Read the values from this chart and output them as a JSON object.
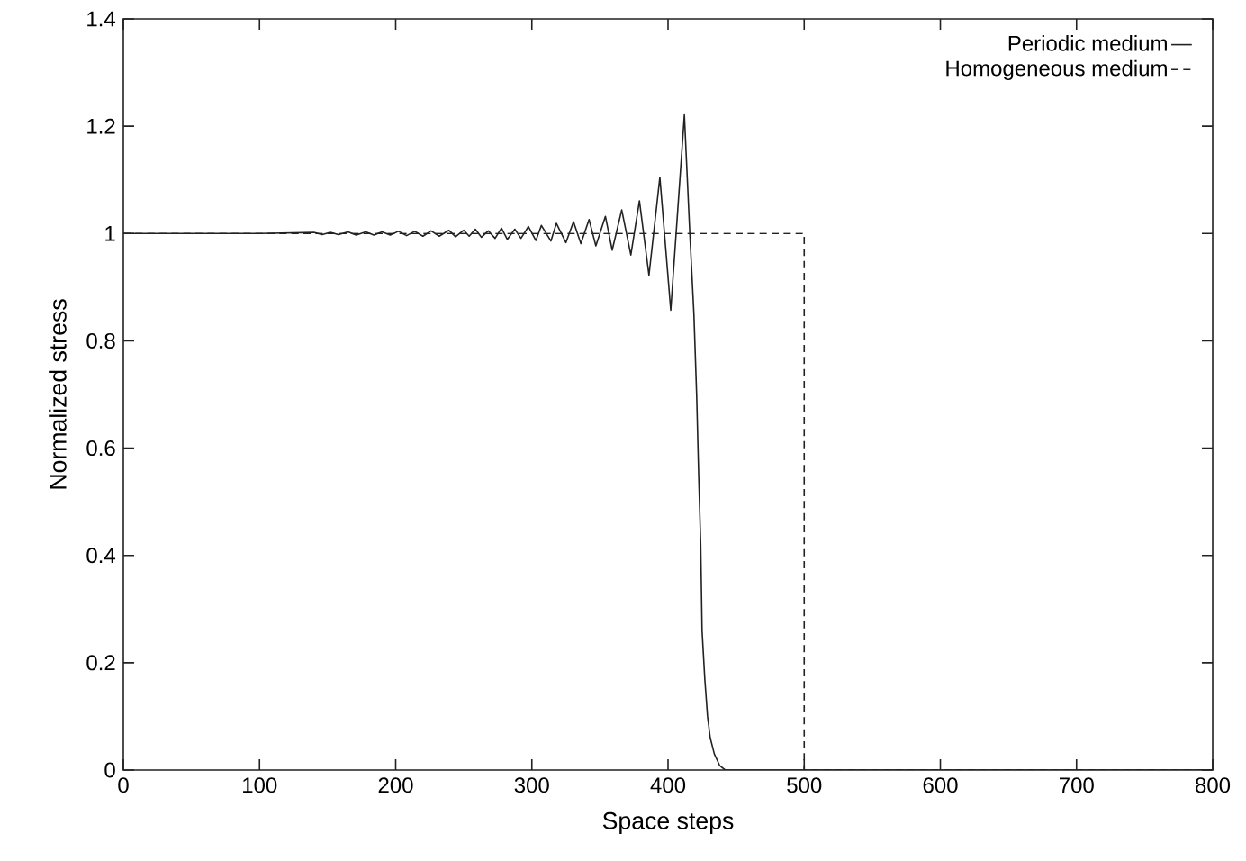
{
  "chart_data": {
    "type": "line",
    "xlabel": "Space steps",
    "ylabel": "Normalized stress",
    "xlim": [
      0,
      800
    ],
    "ylim": [
      0,
      1.4
    ],
    "xticks": [
      0,
      100,
      200,
      300,
      400,
      500,
      600,
      700,
      800
    ],
    "yticks": [
      0,
      0.2,
      0.4,
      0.6,
      0.8,
      1,
      1.2,
      1.4
    ],
    "legend": "top right",
    "grid": false,
    "marker": "none",
    "series": [
      {
        "name": "Periodic medium",
        "color": "#222222",
        "line_style": "solid",
        "x": [
          0,
          100,
          140,
          146,
          152,
          158,
          165,
          171,
          178,
          184,
          190,
          196,
          202,
          208,
          214,
          220,
          226,
          232,
          239,
          244,
          250,
          254,
          258.5,
          263,
          268,
          273,
          277.7,
          282,
          287.5,
          292,
          297.5,
          303,
          307,
          314,
          318,
          325,
          330.6,
          336,
          342,
          347,
          354,
          359,
          366,
          372.7,
          379,
          386,
          394,
          402,
          412,
          416,
          419,
          421,
          422.5,
          424,
          425,
          427,
          429,
          431,
          434,
          438,
          442,
          800
        ],
        "values": [
          1,
          1,
          1.002,
          0.998,
          1.002,
          0.998,
          1.003,
          0.997,
          1.003,
          0.997,
          1.003,
          0.997,
          1.004,
          0.996,
          1.004,
          0.995,
          1.005,
          0.995,
          1.006,
          0.994,
          1.006,
          0.995,
          1.008,
          0.993,
          1.005,
          0.991,
          1.01,
          0.989,
          1.008,
          0.991,
          1.013,
          0.987,
          1.015,
          0.986,
          1.019,
          0.983,
          1.022,
          0.981,
          1.026,
          0.977,
          1.032,
          0.969,
          1.044,
          0.96,
          1.061,
          0.922,
          1.105,
          0.857,
          1.221,
          1.0,
          0.85,
          0.7,
          0.55,
          0.42,
          0.26,
          0.17,
          0.1,
          0.06,
          0.03,
          0.008,
          0,
          0
        ]
      },
      {
        "name": "Homogeneous medium",
        "color": "#222222",
        "line_style": "dashed",
        "x": [
          0,
          500,
          500,
          800
        ],
        "values": [
          1,
          1,
          0,
          0
        ]
      }
    ]
  }
}
